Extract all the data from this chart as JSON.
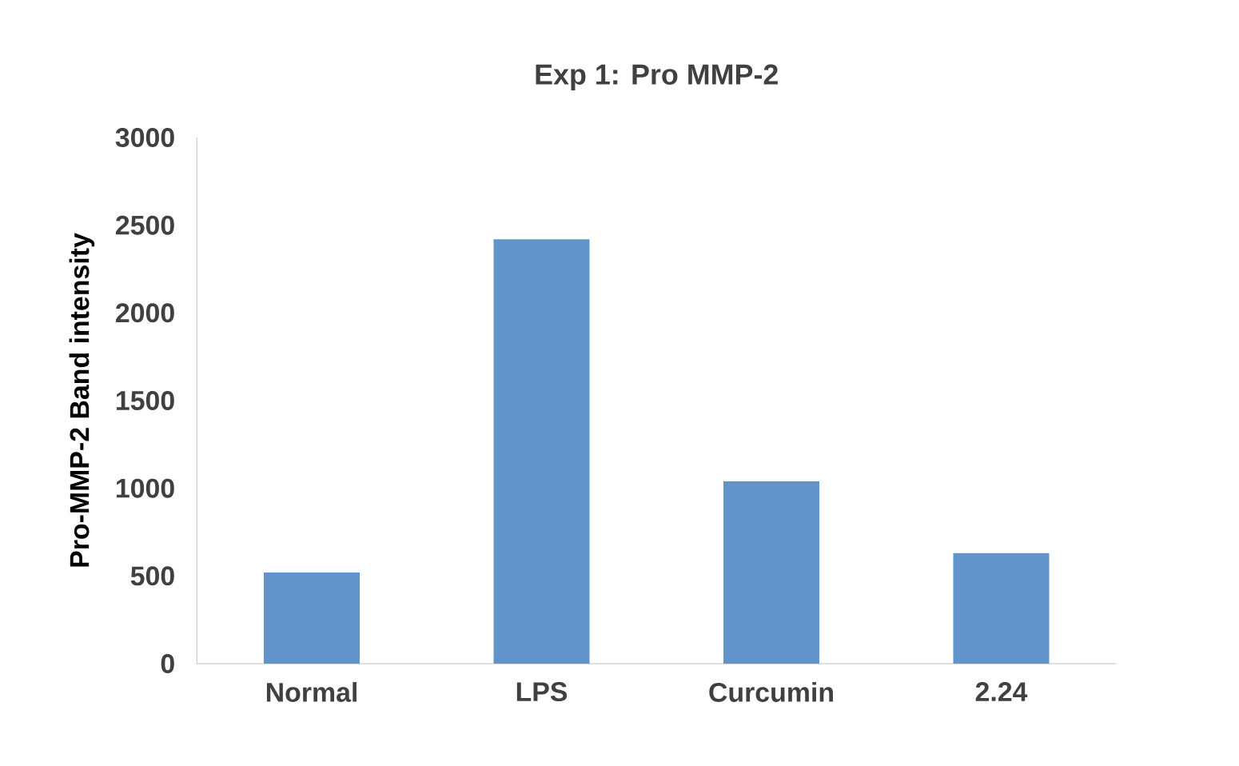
{
  "chart_data": {
    "type": "bar",
    "title": "Exp 1: Pro MMP-2",
    "ylabel": "Pro-MMP-2 Band intensity",
    "categories": [
      "Normal",
      "LPS",
      "Curcumin",
      "2.24"
    ],
    "values": [
      520,
      2420,
      1040,
      630
    ],
    "color": "#6195c9",
    "ylim": [
      0,
      3000
    ],
    "yticks": [
      0,
      500,
      1000,
      1500,
      2000,
      2500,
      3000
    ]
  }
}
